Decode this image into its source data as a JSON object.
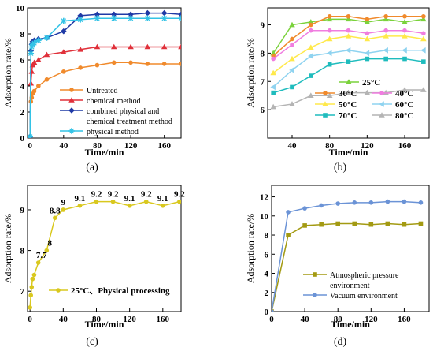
{
  "chart_data": [
    {
      "panel": "(a)",
      "type": "line",
      "xlabel": "Time/min",
      "ylabel": "Adsorption rate/%",
      "xlim": [
        -3,
        180
      ],
      "ylim": [
        0,
        10
      ],
      "xticks": [
        0,
        40,
        80,
        120,
        160
      ],
      "yticks": [
        0,
        2,
        4,
        6,
        8,
        10
      ],
      "grid": false,
      "legend_position": "bottom-right",
      "series": [
        {
          "name": "Untreated",
          "color": "#f08a2c",
          "marker": "circle",
          "x": [
            0,
            1,
            2,
            3,
            5,
            10,
            20,
            40,
            60,
            80,
            100,
            120,
            140,
            160,
            180
          ],
          "y": [
            0.1,
            2.8,
            3.1,
            3.4,
            3.6,
            4.0,
            4.5,
            5.1,
            5.4,
            5.6,
            5.8,
            5.8,
            5.7,
            5.7,
            5.7
          ]
        },
        {
          "name": "chemical method",
          "color": "#e0303a",
          "marker": "triangle",
          "x": [
            0,
            1,
            2,
            3,
            5,
            10,
            20,
            40,
            60,
            80,
            100,
            120,
            140,
            160,
            180
          ],
          "y": [
            0.1,
            4.2,
            5.1,
            5.6,
            5.8,
            6.0,
            6.4,
            6.6,
            6.8,
            7.0,
            7.0,
            7.0,
            7.0,
            7.0,
            7.0
          ]
        },
        {
          "name": "combined physical and chemical treatment method",
          "color": "#1f3aa6",
          "marker": "diamond",
          "x": [
            0,
            1,
            2,
            3,
            5,
            10,
            20,
            40,
            60,
            80,
            100,
            120,
            140,
            160,
            180
          ],
          "y": [
            0.1,
            6.7,
            7.2,
            7.4,
            7.5,
            7.6,
            7.7,
            8.2,
            9.4,
            9.5,
            9.5,
            9.5,
            9.6,
            9.6,
            9.5
          ]
        },
        {
          "name": "physical method",
          "color": "#33c3e6",
          "marker": "star",
          "x": [
            0,
            1,
            2,
            3,
            5,
            10,
            20,
            40,
            60,
            80,
            100,
            120,
            140,
            160,
            180
          ],
          "y": [
            0.1,
            6.5,
            7.0,
            7.2,
            7.3,
            7.5,
            7.7,
            9.0,
            9.1,
            9.2,
            9.2,
            9.2,
            9.2,
            9.2,
            9.2
          ]
        }
      ]
    },
    {
      "panel": "(b)",
      "type": "line",
      "xlabel": "Time/min",
      "ylabel": "Adsorption rate/%",
      "xlim": [
        14,
        186
      ],
      "ylim": [
        5,
        9.6
      ],
      "xticks": [
        40,
        80,
        120,
        160
      ],
      "yticks": [
        6,
        7,
        8,
        9
      ],
      "grid": false,
      "legend_position": "bottom-right",
      "x": [
        20,
        40,
        60,
        80,
        100,
        120,
        140,
        160,
        180
      ],
      "series": [
        {
          "name": "25°C",
          "color": "#7ad23b",
          "marker": "triangle",
          "values": [
            8.0,
            9.0,
            9.1,
            9.2,
            9.2,
            9.1,
            9.2,
            9.1,
            9.2
          ]
        },
        {
          "name": "30°C",
          "color": "#f08a2c",
          "marker": "circle",
          "values": [
            7.9,
            8.5,
            9.0,
            9.3,
            9.3,
            9.2,
            9.3,
            9.3,
            9.3
          ]
        },
        {
          "name": "40°C",
          "color": "#f07de0",
          "marker": "circle",
          "values": [
            7.8,
            8.3,
            8.8,
            8.8,
            8.8,
            8.7,
            8.8,
            8.8,
            8.7
          ]
        },
        {
          "name": "50°C",
          "color": "#ffe94a",
          "marker": "triangle",
          "values": [
            7.3,
            7.8,
            8.2,
            8.5,
            8.6,
            8.5,
            8.6,
            8.6,
            8.5
          ]
        },
        {
          "name": "60°C",
          "color": "#8fd3f0",
          "marker": "triangle-left",
          "values": [
            6.8,
            7.4,
            7.9,
            8.0,
            8.1,
            8.0,
            8.1,
            8.1,
            8.1
          ]
        },
        {
          "name": "70°C",
          "color": "#1fbcbd",
          "marker": "square",
          "values": [
            6.6,
            6.8,
            7.2,
            7.6,
            7.7,
            7.8,
            7.8,
            7.8,
            7.7
          ]
        },
        {
          "name": "80°C",
          "color": "#b4b4b4",
          "marker": "triangle",
          "values": [
            6.1,
            6.2,
            6.5,
            6.5,
            6.6,
            6.6,
            6.6,
            6.7,
            6.7
          ]
        }
      ]
    },
    {
      "panel": "(c)",
      "type": "line",
      "xlabel": "Time/min",
      "ylabel": "Adsorption rate/%",
      "xlim": [
        -3,
        182
      ],
      "ylim": [
        6.5,
        9.6
      ],
      "xticks": [
        0,
        40,
        80,
        120,
        160
      ],
      "yticks": [
        7,
        8,
        9
      ],
      "grid": false,
      "legend_position": "bottom-right",
      "series": [
        {
          "name": "25°C、Physical processing",
          "color": "#d9c81e",
          "marker": "circle",
          "x": [
            0,
            1,
            2,
            3,
            5,
            10,
            20,
            30,
            40,
            60,
            80,
            100,
            120,
            140,
            160,
            180
          ],
          "y": [
            6.6,
            6.9,
            7.1,
            7.3,
            7.4,
            7.7,
            8.0,
            8.8,
            9.0,
            9.1,
            9.2,
            9.2,
            9.1,
            9.2,
            9.1,
            9.2
          ]
        }
      ],
      "data_labels": [
        {
          "x": 10,
          "y": 7.7,
          "text": "7.7"
        },
        {
          "x": 20,
          "y": 8.0,
          "text": "8"
        },
        {
          "x": 30,
          "y": 8.8,
          "text": "8.8"
        },
        {
          "x": 40,
          "y": 9.0,
          "text": "9"
        },
        {
          "x": 60,
          "y": 9.1,
          "text": "9.1"
        },
        {
          "x": 80,
          "y": 9.2,
          "text": "9.2"
        },
        {
          "x": 100,
          "y": 9.2,
          "text": "9.2"
        },
        {
          "x": 120,
          "y": 9.1,
          "text": "9.1"
        },
        {
          "x": 140,
          "y": 9.2,
          "text": "9.2"
        },
        {
          "x": 160,
          "y": 9.1,
          "text": "9.1"
        },
        {
          "x": 180,
          "y": 9.2,
          "text": "9.2"
        }
      ]
    },
    {
      "panel": "(d)",
      "type": "line",
      "xlabel": "Time/min",
      "ylabel": "Adsorption rate/%",
      "xlim": [
        0,
        190
      ],
      "ylim": [
        0,
        13.2
      ],
      "xticks": [
        0,
        40,
        80,
        120,
        160
      ],
      "yticks": [
        0,
        2,
        4,
        6,
        8,
        10,
        12
      ],
      "grid": false,
      "legend_position": "bottom-right",
      "x": [
        0,
        20,
        40,
        60,
        80,
        100,
        120,
        140,
        160,
        180
      ],
      "series": [
        {
          "name": "Atmospheric pressure environment",
          "color": "#a39a12",
          "marker": "square",
          "values": [
            0,
            8.0,
            9.0,
            9.1,
            9.2,
            9.2,
            9.1,
            9.2,
            9.1,
            9.2
          ]
        },
        {
          "name": "Vacuum environment",
          "color": "#6b93d6",
          "marker": "circle",
          "values": [
            0,
            10.4,
            10.8,
            11.1,
            11.3,
            11.4,
            11.4,
            11.5,
            11.5,
            11.4
          ]
        }
      ]
    }
  ]
}
